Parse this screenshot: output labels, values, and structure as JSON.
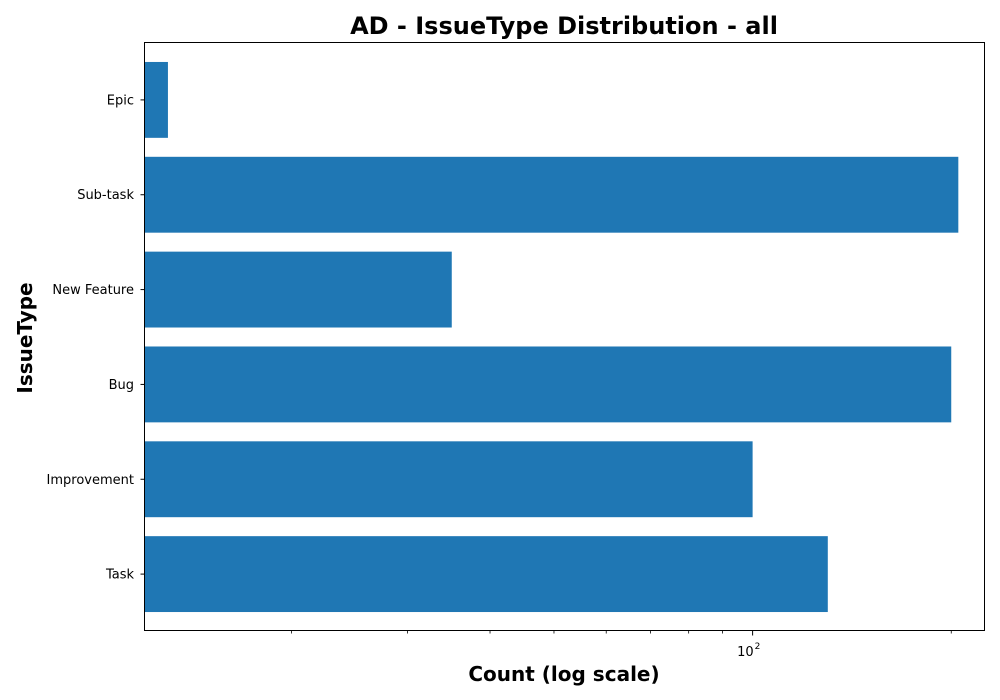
{
  "chart_data": {
    "type": "bar",
    "orientation": "horizontal",
    "title": "AD - IssueType Distribution - all",
    "xlabel": "Count (log scale)",
    "ylabel": "IssueType",
    "x_scale": "log",
    "xlim": [
      12,
      225
    ],
    "categories": [
      "Epic",
      "Sub-task",
      "New Feature",
      "Bug",
      "Improvement",
      "Task"
    ],
    "values": [
      13,
      205,
      35,
      200,
      100,
      130
    ],
    "x_major_ticks": [
      {
        "value": 100,
        "base": "10",
        "exp": "2"
      }
    ],
    "x_minor_ticks": [
      20,
      30,
      40,
      50,
      60,
      70,
      80,
      90,
      200
    ],
    "grid": false,
    "bar_color": "#1f77b4"
  }
}
